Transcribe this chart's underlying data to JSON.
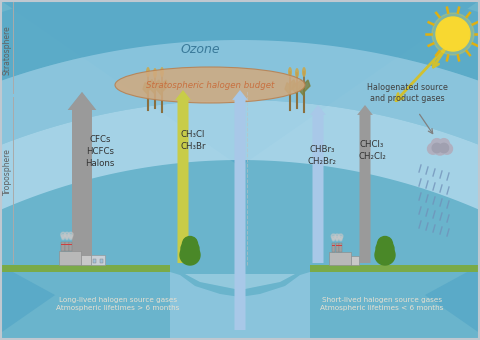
{
  "bg_color": "#f0f4f8",
  "strat_band_outer_color": "#6db8d8",
  "strat_band_inner_color": "#a8d8ee",
  "strat_band_lightest": "#c8eaf8",
  "ozone_text": "Ozone",
  "ozone_text_color": "#3a7a9a",
  "halogen_budget_text": "Stratospheric halogen budget",
  "halogen_budget_color": "#c87040",
  "halogen_budget_fill": "#d4b090",
  "trop_bg": "#e8f4f8",
  "trop_bg2": "#f0f8fc",
  "ground_fill": "#c8a060",
  "ground_dark": "#a07840",
  "grass_color": "#80b050",
  "water_fill": "#90c8e0",
  "water_light": "#b8dcea",
  "strat_label": "Stratosphere",
  "trop_label": "Troposphere",
  "side_label_color": "#606060",
  "long_lived_text": "Long-lived halogen source gases\nAtmospheric lifetimes > 6 months",
  "short_lived_text": "Short-lived halogen source gases\nAtmospheric lifetimes < 6 months",
  "bottom_text_color": "#e8e0d0",
  "cfcs_text": "CFCs\nHCFCs\nHalons",
  "ch3_text": "CH₃Cl\nCH₃Br",
  "chbr_text": "CHBr₃\nCH₂Br₂",
  "chcl_text": "CHCl₃\nCH₂Cl₂",
  "halogenated_text": "Halogenated source\nand product gases",
  "chem_text_color": "#333333",
  "arrow_gray": "#909090",
  "arrow_gray_dark": "#686868",
  "arrow_yellow": "#c8c840",
  "arrow_blue": "#98c0e0",
  "sun_color": "#f8d830",
  "sun_ray_color": "#e0b010",
  "factory_body": "#c0c0c0",
  "factory_edge": "#909090",
  "chimney_color": "#a8a8a8",
  "smoke_color": "#d8d8d8",
  "tree_trunk": "#906030",
  "tree_foliage": "#508030",
  "cloud_color": "#b8b8c8",
  "rain_color": "#7090b8",
  "reed_color": "#8a7040"
}
